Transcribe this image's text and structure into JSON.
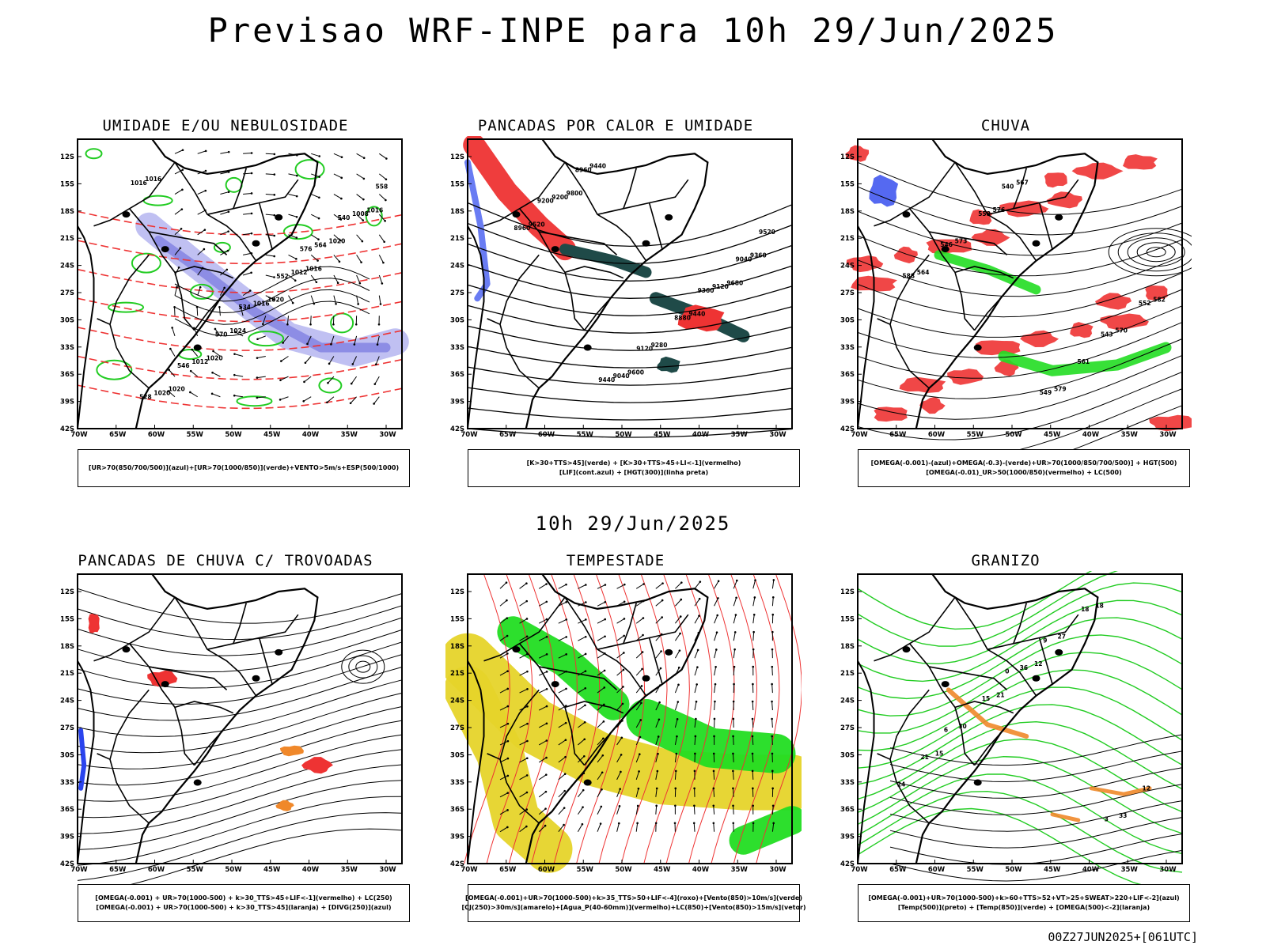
{
  "page": {
    "title": "Previsao WRF-INPE  para 10h 29/Jun/2025",
    "subtitle": "10h 29/Jun/2025",
    "footer": "00Z27JUN2025+[061UTC]"
  },
  "axes": {
    "lat_labels": [
      "12S",
      "15S",
      "18S",
      "21S",
      "24S",
      "27S",
      "30S",
      "33S",
      "36S",
      "39S",
      "42S"
    ],
    "lon_labels": [
      "70W",
      "65W",
      "60W",
      "55W",
      "50W",
      "45W",
      "40W",
      "35W",
      "30W"
    ]
  },
  "colors": {
    "humidity_blue": "#8c8ce8",
    "humidity_green": "#22cc22",
    "red": "#ee3333",
    "blue": "#2a44ee",
    "green_fill": "#22dd22",
    "dark_teal": "#1f4a48",
    "orange": "#f0882a",
    "yellow": "#e6d42a",
    "contour_black": "#000000"
  },
  "panels": [
    {
      "id": "umidade",
      "title": "UMIDADE E/OU NEBULOSIDADE",
      "legend": [
        "[UR>70(850/700/500)](azul)+[UR>70(1000/850)](verde)+VENTO>5m/s+ESP(500/1000)"
      ],
      "contour_labels": [
        "1016",
        "1016",
        "1020",
        "1016",
        "1020",
        "1020",
        "1020",
        "1024",
        "1016",
        "1012",
        "1012",
        "1008",
        "1016",
        "1020",
        "564",
        "570",
        "558",
        "552",
        "546",
        "540",
        "534",
        "528",
        "576"
      ]
    },
    {
      "id": "pancadas_calor",
      "title": "PANCADAS POR CALOR E UMIDADE",
      "legend": [
        "[K>30+TTS>45](verde) + [K>30+TTS>45+LI<-1](vermelho)",
        "[LIF](cont.azul) + [HGT(300)](linha preta)"
      ],
      "contour_labels": [
        "9800",
        "9680",
        "9600",
        "9520",
        "9440",
        "9440",
        "9360",
        "9280",
        "9200",
        "9120",
        "9040",
        "8960",
        "8880",
        "8960",
        "9040",
        "9120",
        "9200",
        "9360",
        "9440",
        "9520"
      ]
    },
    {
      "id": "chuva",
      "title": "CHUVA",
      "legend": [
        "[OMEGA(-0.001)-(azul)+OMEGA(-0.3)-(verde)+UR>70(1000/850/700/500)] + HGT(500)",
        "[OMEGA(-0.01)_UR>50(1000/850)(vermelho) + LC(500)"
      ],
      "contour_labels": [
        "576",
        "582",
        "579",
        "573",
        "570",
        "567",
        "564",
        "561",
        "558",
        "552",
        "549",
        "546",
        "543",
        "540",
        "588"
      ]
    },
    {
      "id": "pancadas_trovoadas",
      "title": "PANCADAS DE CHUVA C/ TROVOADAS",
      "legend": [
        "[OMEGA(-0.001) + UR>70(1000-500) + k>30_TTS>45+LIF<-1](vermelho) + LC(250)",
        "[OMEGA(-0.001) + UR>70(1000-500) + k>30_TTS>45](laranja) + [DIVG(250)](azul)"
      ],
      "contour_labels": []
    },
    {
      "id": "tempestade",
      "title": "TEMPESTADE",
      "legend": [
        "[OMEGA(-0.001)+UR>70(1000-500)+k>35_TTS>50+LIF<-4](roxo)+[Vento(850)>10m/s](verde)",
        "[CJ(250)>30m/s](amarelo)+[Agua_P(40-60mm)](vermelho)+LC(850)+[Vento(850)>15m/s](vetor)"
      ],
      "contour_labels": []
    },
    {
      "id": "granizo",
      "title": "GRANIZO",
      "legend": [
        "[OMEGA(-0.001)+UR>70(1000-500)+k>60+TTS>52+VT>25+SWEAT>220+LIF<-2](azul)",
        "[Temp(500)](preto) + [Temp(850)](verde) + [OMEGA(500)<-2](laranja)"
      ],
      "contour_labels": [
        "12",
        "15",
        "18",
        "21",
        "24",
        "27",
        "30",
        "33",
        "36",
        "21",
        "18",
        "15",
        "12",
        "9",
        "6",
        "3",
        "0"
      ]
    }
  ]
}
